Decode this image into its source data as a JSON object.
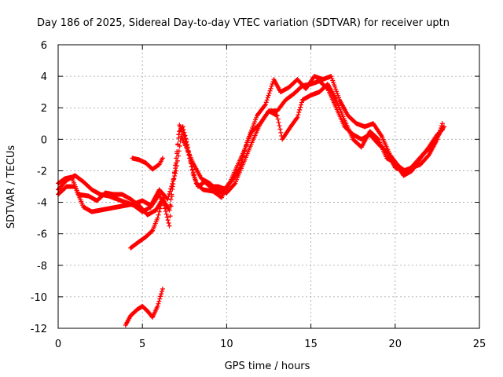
{
  "chart_data": {
    "type": "scatter",
    "title": "Day 186 of 2025, Sidereal Day-to-day VTEC variation (SDTVAR) for receiver uptn",
    "xlabel": "GPS time / hours",
    "ylabel": "SDTVAR / TECUs",
    "xlim": [
      0,
      25
    ],
    "ylim": [
      -12,
      6
    ],
    "x_ticks": [
      0,
      5,
      10,
      15,
      20,
      25
    ],
    "x_tick_labels": [
      "0",
      "5",
      "10",
      "15",
      "20",
      "25"
    ],
    "y_ticks": [
      -12,
      -10,
      -8,
      -6,
      -4,
      -2,
      0,
      2,
      4,
      6
    ],
    "y_tick_labels": [
      "-12",
      "-10",
      "-8",
      "-6",
      "-4",
      "-2",
      "0",
      "2",
      "4",
      "6"
    ],
    "grid": true,
    "marker": "+",
    "series": [
      {
        "name": "main-track-a",
        "color": "#ff0000",
        "points": [
          [
            0,
            -3.2
          ],
          [
            0.5,
            -2.6
          ],
          [
            1,
            -2.3
          ],
          [
            1.5,
            -2.7
          ],
          [
            2,
            -3.2
          ],
          [
            2.5,
            -3.5
          ],
          [
            3,
            -3.6
          ],
          [
            3.5,
            -3.8
          ],
          [
            4,
            -4.0
          ],
          [
            4.5,
            -4.2
          ],
          [
            5,
            -4.6
          ],
          [
            5.5,
            -4.3
          ],
          [
            6,
            -3.5
          ],
          [
            6.3,
            -4.2
          ],
          [
            6.6,
            -5.5
          ],
          [
            6.8,
            -3.0
          ],
          [
            7,
            -1.2
          ],
          [
            7.2,
            0.5
          ],
          [
            7.4,
            0.8
          ],
          [
            7.7,
            -0.5
          ],
          [
            8,
            -2.2
          ],
          [
            8.3,
            -3.0
          ],
          [
            8.7,
            -2.7
          ],
          [
            9,
            -3.0
          ],
          [
            9.5,
            -3.0
          ],
          [
            10,
            -3.2
          ],
          [
            10.5,
            -2.0
          ],
          [
            11,
            -0.8
          ],
          [
            11.5,
            0.5
          ],
          [
            12,
            1.0
          ],
          [
            12.5,
            1.8
          ],
          [
            13,
            1.8
          ],
          [
            13.5,
            2.5
          ],
          [
            14,
            2.9
          ],
          [
            14.5,
            3.4
          ],
          [
            15,
            3.5
          ],
          [
            15.5,
            3.7
          ],
          [
            16,
            3.2
          ],
          [
            16.5,
            2.0
          ],
          [
            17,
            0.8
          ],
          [
            17.5,
            0.3
          ],
          [
            18,
            0.0
          ],
          [
            18.5,
            0.3
          ],
          [
            19,
            -0.3
          ],
          [
            19.5,
            -0.8
          ],
          [
            20,
            -1.8
          ],
          [
            20.5,
            -2.0
          ],
          [
            21,
            -1.8
          ],
          [
            21.5,
            -1.6
          ],
          [
            22,
            -1.0
          ],
          [
            22.5,
            0.0
          ],
          [
            22.8,
            1.0
          ]
        ]
      },
      {
        "name": "main-track-b",
        "color": "#ff0000",
        "points": [
          [
            0,
            -3.5
          ],
          [
            0.5,
            -3.0
          ],
          [
            1,
            -3.0
          ],
          [
            1.5,
            -4.3
          ],
          [
            2,
            -4.6
          ],
          [
            2.5,
            -4.5
          ],
          [
            3,
            -4.4
          ],
          [
            3.5,
            -4.3
          ],
          [
            4,
            -4.2
          ],
          [
            4.5,
            -4.1
          ],
          [
            5,
            -3.9
          ],
          [
            5.5,
            -4.2
          ],
          [
            6,
            -3.2
          ],
          [
            6.5,
            -3.8
          ],
          [
            7,
            -2.0
          ],
          [
            7.3,
            0.2
          ],
          [
            7.6,
            -0.5
          ],
          [
            8,
            -1.5
          ],
          [
            8.5,
            -2.5
          ],
          [
            9,
            -2.8
          ],
          [
            9.5,
            -3.3
          ],
          [
            10,
            -3.4
          ],
          [
            10.5,
            -2.8
          ],
          [
            11,
            -1.5
          ],
          [
            11.5,
            -0.2
          ],
          [
            12,
            1.0
          ],
          [
            12.5,
            1.8
          ],
          [
            13,
            1.5
          ],
          [
            13.3,
            0.0
          ],
          [
            13.8,
            0.8
          ],
          [
            14.2,
            1.4
          ],
          [
            14.5,
            2.5
          ],
          [
            15,
            2.8
          ],
          [
            15.5,
            3.0
          ],
          [
            16,
            3.5
          ],
          [
            16.5,
            2.5
          ],
          [
            17,
            1.2
          ],
          [
            17.5,
            0.0
          ],
          [
            18,
            -0.5
          ],
          [
            18.5,
            0.5
          ],
          [
            19,
            0.0
          ],
          [
            19.5,
            -1.2
          ],
          [
            20,
            -1.5
          ],
          [
            20.5,
            -2.3
          ],
          [
            21,
            -2.0
          ],
          [
            21.5,
            -1.2
          ],
          [
            22,
            -0.5
          ],
          [
            22.5,
            0.3
          ],
          [
            22.8,
            0.6
          ]
        ]
      },
      {
        "name": "main-track-c",
        "color": "#ff0000",
        "points": [
          [
            0,
            -2.8
          ],
          [
            0.4,
            -2.5
          ],
          [
            0.8,
            -2.4
          ],
          [
            1.2,
            -3.5
          ],
          [
            1.8,
            -3.6
          ],
          [
            2.3,
            -3.9
          ],
          [
            2.8,
            -3.4
          ],
          [
            3.3,
            -3.5
          ],
          [
            3.8,
            -3.5
          ],
          [
            4.3,
            -3.8
          ],
          [
            4.8,
            -4.2
          ],
          [
            5.3,
            -4.8
          ],
          [
            5.8,
            -4.5
          ],
          [
            6.2,
            -3.8
          ],
          [
            6.6,
            -4.5
          ],
          [
            7,
            -1.5
          ],
          [
            7.2,
            0.9
          ],
          [
            7.5,
            0.2
          ],
          [
            7.8,
            -1.2
          ],
          [
            8.2,
            -2.8
          ],
          [
            8.6,
            -3.2
          ],
          [
            9.2,
            -3.3
          ],
          [
            9.7,
            -3.7
          ],
          [
            10,
            -3.0
          ],
          [
            10.4,
            -2.5
          ],
          [
            10.8,
            -1.8
          ],
          [
            11.2,
            -0.2
          ],
          [
            11.8,
            1.5
          ],
          [
            12.3,
            2.2
          ],
          [
            12.8,
            3.8
          ],
          [
            13.2,
            3.0
          ],
          [
            13.7,
            3.3
          ],
          [
            14.2,
            3.8
          ],
          [
            14.7,
            3.2
          ],
          [
            15.2,
            4.0
          ],
          [
            15.7,
            3.8
          ],
          [
            16.2,
            4.0
          ],
          [
            16.7,
            2.5
          ],
          [
            17.2,
            1.5
          ],
          [
            17.7,
            1.0
          ],
          [
            18.2,
            0.8
          ],
          [
            18.7,
            1.0
          ],
          [
            19.2,
            0.2
          ],
          [
            19.7,
            -1.0
          ],
          [
            20.2,
            -1.7
          ],
          [
            20.7,
            -2.1
          ],
          [
            21.2,
            -1.5
          ],
          [
            21.7,
            -0.9
          ],
          [
            22.2,
            -0.4
          ],
          [
            22.7,
            0.5
          ],
          [
            22.9,
            0.8
          ]
        ]
      },
      {
        "name": "short-segment-1",
        "color": "#ff0000",
        "points": [
          [
            4.4,
            -1.2
          ],
          [
            4.8,
            -1.3
          ],
          [
            5.2,
            -1.5
          ],
          [
            5.6,
            -1.9
          ],
          [
            6,
            -1.6
          ],
          [
            6.2,
            -1.2
          ]
        ]
      },
      {
        "name": "short-segment-2",
        "color": "#ff0000",
        "points": [
          [
            4.3,
            -6.9
          ],
          [
            4.8,
            -6.5
          ],
          [
            5.2,
            -6.2
          ],
          [
            5.6,
            -5.8
          ],
          [
            5.9,
            -5.0
          ],
          [
            6.1,
            -4.2
          ],
          [
            6.3,
            -3.6
          ]
        ]
      },
      {
        "name": "short-segment-3",
        "color": "#ff0000",
        "points": [
          [
            4,
            -11.8
          ],
          [
            4.3,
            -11.2
          ],
          [
            4.7,
            -10.8
          ],
          [
            5,
            -10.6
          ],
          [
            5.3,
            -10.9
          ],
          [
            5.6,
            -11.3
          ],
          [
            5.9,
            -10.6
          ],
          [
            6.2,
            -9.5
          ]
        ]
      }
    ]
  }
}
